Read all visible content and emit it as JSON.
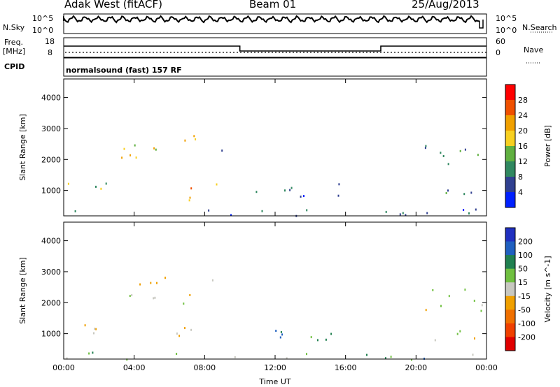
{
  "header": {
    "station": "Adak West (fitACF)",
    "beam": "Beam 01",
    "date": "25/Aug/2013"
  },
  "panels": {
    "nsky_label": "N.Sky",
    "nsearch_label": "N.Search",
    "freq_label_1": "Freq.",
    "freq_label_2": "[MHz]",
    "nave_label": "Nave",
    "cpid_label": "CPID",
    "cpid_text": "normalsound (fast) 157 RF",
    "nsky_ticks": [
      "10^5",
      "10^0"
    ],
    "nsearch_ticks": [
      "10^5",
      "10^0"
    ],
    "freq_ticks": [
      "18",
      "8"
    ],
    "nave_ticks": [
      "60",
      "0"
    ]
  },
  "chart_data": [
    {
      "type": "heatmap",
      "title": "",
      "xlabel": "",
      "ylabel": "Slant Range [km]",
      "x_ticks": [
        "00:00",
        "04:00",
        "08:00",
        "12:00",
        "16:00",
        "20:00",
        "00:00"
      ],
      "y_ticks": [
        1000,
        2000,
        3000,
        4000
      ],
      "xlim": [
        0,
        24
      ],
      "ylim": [
        180,
        4600
      ],
      "colorbar": {
        "label": "Power [dB]",
        "ticks": [
          "28",
          "24",
          "20",
          "16",
          "12",
          "8",
          "4"
        ],
        "colors": [
          "#ff0000",
          "#f05000",
          "#f0a000",
          "#f8d020",
          "#60b040",
          "#308860",
          "#304090",
          "#0020ff"
        ]
      },
      "patches": [
        {
          "t0": 0.0,
          "t1": 3.0,
          "r0": 850,
          "r1": 1350,
          "level": 0.45
        },
        {
          "t0": 3.2,
          "t1": 7.6,
          "r0": 2000,
          "r1": 2900,
          "level": 0.55
        },
        {
          "t0": 6.2,
          "t1": 9.2,
          "r0": 700,
          "r1": 1250,
          "level": 0.75
        },
        {
          "t0": 8.2,
          "t1": 9.3,
          "r0": 2300,
          "r1": 2800,
          "level": 0.3
        },
        {
          "t0": 0.0,
          "t1": 24.0,
          "r0": 180,
          "r1": 420,
          "level": 0.2
        },
        {
          "t0": 20.3,
          "t1": 23.9,
          "r0": 1700,
          "r1": 2600,
          "level": 0.25
        },
        {
          "t0": 20.8,
          "t1": 23.9,
          "r0": 800,
          "r1": 1300,
          "level": 0.3
        },
        {
          "t0": 10.0,
          "t1": 16.0,
          "r0": 800,
          "r1": 1300,
          "level": 0.15
        }
      ]
    },
    {
      "type": "heatmap",
      "title": "",
      "xlabel": "Time UT",
      "ylabel": "Slant Range [km]",
      "x_ticks": [
        "00:00",
        "04:00",
        "08:00",
        "12:00",
        "16:00",
        "20:00",
        "00:00"
      ],
      "y_ticks": [
        1000,
        2000,
        3000,
        4000
      ],
      "xlim": [
        0,
        24
      ],
      "ylim": [
        180,
        4600
      ],
      "colorbar": {
        "label": "Velocity [m s^-1]",
        "ticks": [
          "200",
          "100",
          "50",
          "15",
          "-15",
          "-50",
          "-100",
          "-200"
        ],
        "colors": [
          "#2030c0",
          "#2060c0",
          "#208050",
          "#70c040",
          "#c8c8c0",
          "#f0a000",
          "#f07000",
          "#f04000",
          "#e00000"
        ]
      },
      "patches": [
        {
          "t0": 0.0,
          "t1": 3.0,
          "r0": 850,
          "r1": 1350,
          "level": 0.5
        },
        {
          "t0": 3.2,
          "t1": 7.6,
          "r0": 2000,
          "r1": 2900,
          "level": 0.5
        },
        {
          "t0": 6.2,
          "t1": 9.2,
          "r0": 700,
          "r1": 1250,
          "level": 0.5
        },
        {
          "t0": 8.2,
          "t1": 9.3,
          "r0": 2300,
          "r1": 2800,
          "level": 0.5
        },
        {
          "t0": 0.0,
          "t1": 24.0,
          "r0": 180,
          "r1": 420,
          "level": 0.65
        },
        {
          "t0": 20.3,
          "t1": 23.9,
          "r0": 1700,
          "r1": 2600,
          "level": 0.5
        },
        {
          "t0": 20.8,
          "t1": 23.9,
          "r0": 800,
          "r1": 1300,
          "level": 0.5
        },
        {
          "t0": 10.0,
          "t1": 16.0,
          "r0": 800,
          "r1": 1300,
          "level": 0.7
        }
      ]
    }
  ]
}
